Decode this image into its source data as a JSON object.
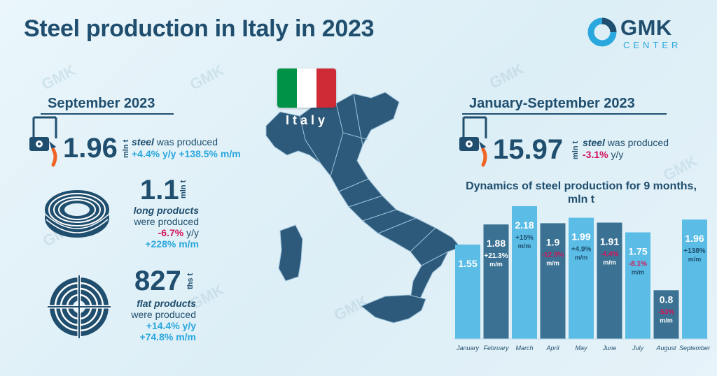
{
  "title": "Steel production in Italy in 2023",
  "logo": {
    "main": "GMK",
    "sub": "CENTER"
  },
  "watermark": "GMK",
  "map": {
    "label": "Italy",
    "flag_colors": [
      "#009246",
      "#ffffff",
      "#ce2b37"
    ],
    "land_color": "#2d5a7b"
  },
  "colors": {
    "primary": "#1f4e6e",
    "accent": "#2aa7dd",
    "negative": "#d4145a",
    "bar_light": "#5bbde6",
    "bar_dark": "#3b7294"
  },
  "september": {
    "header": "September 2023",
    "steel": {
      "value": "1.96",
      "unit": "mln t",
      "label_em": "steel",
      "label_rest": " was produced",
      "yy": "+4.4% y/y",
      "mm": "+138.5% m/m"
    },
    "long": {
      "value": "1.1",
      "unit": "mln t",
      "label_em": "long products",
      "label_rest": "were produced",
      "yy": "-6.7%",
      "yy_suffix": " y/y",
      "mm": "+228% m/m"
    },
    "flat": {
      "value": "827",
      "unit": "ths t",
      "label_em": "flat products",
      "label_rest": "were produced",
      "yy": "+14.4% y/y",
      "mm": "+74.8% m/m"
    }
  },
  "ytd": {
    "header": "January-September 2023",
    "steel": {
      "value": "15.97",
      "unit": "mln t",
      "label_em": "steel",
      "label_rest": " was produced",
      "yy": "-3.1%",
      "yy_suffix": " y/y"
    }
  },
  "chart_data": {
    "type": "bar",
    "title": "Dynamics of steel production for 9 months, mln t",
    "categories": [
      "January",
      "February",
      "March",
      "April",
      "May",
      "June",
      "July",
      "August",
      "September"
    ],
    "values": [
      1.55,
      1.88,
      2.18,
      1.9,
      1.99,
      1.91,
      1.75,
      0.8,
      1.96
    ],
    "value_labels": [
      "1.55",
      "1.88",
      "2.18",
      "1.9",
      "1.99",
      "1.91",
      "1.75",
      "0.8",
      "1.96"
    ],
    "change_mm": [
      "",
      "+21.3%",
      "+15%",
      "-12.9%",
      "+4.9%",
      "-4.4%",
      "-8.1%",
      "-53%",
      "+138%"
    ],
    "change_unit": "m/m",
    "ylim": [
      0,
      2.4
    ]
  }
}
